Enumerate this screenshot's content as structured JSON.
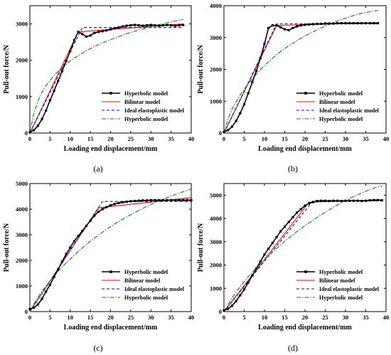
{
  "colors": {
    "measured": "#000000",
    "bilinear": "#ff0000",
    "ideal": "#0000ff",
    "hyperbolic_fit": "#008800"
  },
  "chart_data": [
    {
      "type": "line",
      "panel_label": "(a)",
      "xlabel": "Loading end displacement/mm",
      "ylabel": "Pull-out force/N",
      "xlim": [
        0,
        40
      ],
      "ylim": [
        0,
        3500
      ],
      "xticks": [
        "0",
        "5",
        "10",
        "15",
        "20",
        "25",
        "30",
        "35",
        "40"
      ],
      "yticks": [
        "0",
        "1000",
        "2000",
        "3000"
      ],
      "ytick_values": [
        0,
        1000,
        2000,
        3000
      ],
      "legend": [
        "Hyperbolic model",
        "Bilinear model",
        "Ideal elastoplastic model",
        "Hyperbolic model"
      ],
      "legend_position": "bottom-right",
      "series": [
        {
          "name": "Hyperbolic model",
          "style": "measured",
          "x": [
            0,
            1,
            2,
            3,
            4,
            5,
            6,
            7,
            8,
            9,
            10,
            11,
            12,
            13,
            14,
            15,
            16,
            17,
            18,
            19,
            20,
            21,
            22,
            23,
            24,
            25,
            26,
            27,
            28,
            29,
            30,
            31,
            32,
            33,
            34,
            35,
            36,
            37,
            38
          ],
          "y": [
            20,
            80,
            200,
            380,
            620,
            900,
            1160,
            1430,
            1700,
            1980,
            2250,
            2550,
            2780,
            2720,
            2650,
            2680,
            2750,
            2780,
            2800,
            2820,
            2850,
            2880,
            2900,
            2930,
            2950,
            2960,
            2970,
            2960,
            2950,
            2960,
            2970,
            2960,
            2950,
            2960,
            2970,
            2960,
            2950,
            2960,
            2970
          ]
        },
        {
          "name": "Bilinear model",
          "style": "bilinear",
          "x": [
            0,
            12,
            38
          ],
          "y": [
            0,
            2780,
            3000
          ]
        },
        {
          "name": "Ideal elastoplastic model",
          "style": "ideal",
          "x": [
            0,
            13,
            38
          ],
          "y": [
            0,
            2900,
            2900
          ]
        },
        {
          "name": "Hyperbolic model",
          "style": "hyperbolic_fit",
          "x": [
            0,
            1,
            2,
            3,
            4,
            6,
            8,
            10,
            12,
            14,
            16,
            18,
            20,
            22,
            24,
            26,
            28,
            30,
            32,
            34,
            36,
            38
          ],
          "y": [
            0,
            560,
            880,
            1120,
            1300,
            1580,
            1800,
            1980,
            2130,
            2260,
            2380,
            2480,
            2570,
            2650,
            2730,
            2800,
            2860,
            2920,
            2980,
            3030,
            3080,
            3120
          ]
        }
      ]
    },
    {
      "type": "line",
      "panel_label": "(b)",
      "xlabel": "Loading end displacement/mm",
      "ylabel": "Pull-out force/N",
      "xlim": [
        0,
        40
      ],
      "ylim": [
        0,
        4000
      ],
      "xticks": [
        "0",
        "5",
        "10",
        "15",
        "20",
        "25",
        "30",
        "35",
        "40"
      ],
      "yticks": [
        "0",
        "1000",
        "2000",
        "3000",
        "4000"
      ],
      "ytick_values": [
        0,
        1000,
        2000,
        3000,
        4000
      ],
      "legend": [
        "Hyperbolic model",
        "Bilinear model",
        "Ideal elastoplastic model",
        "Hyperbolic model"
      ],
      "legend_position": "bottom-right",
      "series": [
        {
          "name": "Hyperbolic model",
          "style": "measured",
          "x": [
            0,
            1,
            2,
            3,
            4,
            5,
            6,
            7,
            8,
            9,
            10,
            11,
            12,
            13,
            14,
            15,
            16,
            17,
            18,
            19,
            20,
            21,
            22,
            23,
            24,
            25,
            26,
            27,
            28,
            29,
            30,
            31,
            32,
            33,
            34,
            35,
            36,
            37,
            38
          ],
          "y": [
            30,
            90,
            200,
            380,
            620,
            900,
            1250,
            1600,
            1950,
            2350,
            2800,
            3300,
            3380,
            3380,
            3320,
            3260,
            3230,
            3300,
            3350,
            3380,
            3400,
            3410,
            3420,
            3430,
            3430,
            3440,
            3440,
            3440,
            3450,
            3450,
            3450,
            3450,
            3450,
            3450,
            3450,
            3450,
            3450,
            3450,
            3450
          ]
        },
        {
          "name": "Bilinear model",
          "style": "bilinear",
          "x": [
            0,
            13,
            38
          ],
          "y": [
            0,
            3380,
            3460
          ]
        },
        {
          "name": "Ideal elastoplastic model",
          "style": "ideal",
          "x": [
            0,
            13,
            38
          ],
          "y": [
            0,
            3430,
            3430
          ]
        },
        {
          "name": "Hyperbolic model",
          "style": "hyperbolic_fit",
          "x": [
            0,
            1,
            2,
            3,
            4,
            6,
            8,
            10,
            12,
            14,
            16,
            18,
            20,
            22,
            24,
            26,
            28,
            30,
            32,
            34,
            36,
            38
          ],
          "y": [
            0,
            450,
            750,
            980,
            1200,
            1550,
            1850,
            2120,
            2350,
            2560,
            2740,
            2900,
            3050,
            3180,
            3300,
            3420,
            3520,
            3610,
            3690,
            3760,
            3810,
            3850
          ]
        }
      ]
    },
    {
      "type": "line",
      "panel_label": "(c)",
      "xlabel": "Loading end displacement/mm",
      "ylabel": "Pull-out force/N",
      "xlim": [
        0,
        40
      ],
      "ylim": [
        0,
        5000
      ],
      "xticks": [
        "0",
        "5",
        "10",
        "15",
        "20",
        "25",
        "30",
        "35",
        "40"
      ],
      "yticks": [
        "0",
        "1000",
        "2000",
        "3000",
        "4000",
        "5000"
      ],
      "ytick_values": [
        0,
        1000,
        2000,
        3000,
        4000,
        5000
      ],
      "legend": [
        "Hyperbolic model",
        "Bilinear model",
        "Ideal elastoplastic model",
        "Hyperbolic model"
      ],
      "legend_position": "bottom-right",
      "series": [
        {
          "name": "Hyperbolic model",
          "style": "measured",
          "x": [
            0,
            1,
            2,
            3,
            4,
            5,
            6,
            7,
            8,
            9,
            10,
            11,
            12,
            13,
            14,
            15,
            16,
            17,
            18,
            19,
            20,
            21,
            22,
            23,
            24,
            25,
            26,
            27,
            28,
            29,
            30,
            31,
            32,
            33,
            34,
            35,
            36,
            37,
            38,
            39,
            40
          ],
          "y": [
            100,
            150,
            280,
            500,
            780,
            1050,
            1350,
            1650,
            1950,
            2250,
            2500,
            2750,
            2950,
            3150,
            3350,
            3550,
            3750,
            3900,
            4000,
            4080,
            4150,
            4200,
            4240,
            4270,
            4290,
            4310,
            4320,
            4330,
            4340,
            4340,
            4350,
            4350,
            4350,
            4350,
            4350,
            4350,
            4350,
            4350,
            4350,
            4350,
            4350
          ]
        },
        {
          "name": "Bilinear model",
          "style": "bilinear",
          "x": [
            0,
            17,
            40
          ],
          "y": [
            0,
            4050,
            4450
          ]
        },
        {
          "name": "Ideal elastoplastic model",
          "style": "ideal",
          "x": [
            0,
            18,
            40
          ],
          "y": [
            0,
            4300,
            4300
          ]
        },
        {
          "name": "Hyperbolic model",
          "style": "hyperbolic_fit",
          "x": [
            0,
            1,
            2,
            3,
            4,
            6,
            8,
            10,
            12,
            14,
            16,
            18,
            20,
            22,
            24,
            26,
            28,
            30,
            32,
            34,
            36,
            38,
            40
          ],
          "y": [
            0,
            300,
            560,
            800,
            1000,
            1400,
            1750,
            2050,
            2350,
            2620,
            2870,
            3100,
            3320,
            3520,
            3700,
            3870,
            4030,
            4180,
            4320,
            4450,
            4570,
            4680,
            4790
          ]
        }
      ]
    },
    {
      "type": "line",
      "panel_label": "(d)",
      "xlabel": "Loading end displacement/mm",
      "ylabel": "Pull-out force/N",
      "xlim": [
        0,
        40
      ],
      "ylim": [
        0,
        5500
      ],
      "xticks": [
        "0",
        "5",
        "10",
        "15",
        "20",
        "25",
        "30",
        "35",
        "40"
      ],
      "yticks": [
        "0",
        "1000",
        "2000",
        "3000",
        "4000",
        "5000"
      ],
      "ytick_values": [
        0,
        1000,
        2000,
        3000,
        4000,
        5000
      ],
      "legend": [
        "Hyperbolic model",
        "Bilinear model",
        "Ideal elastoplastic model",
        "Hyperbolic model"
      ],
      "legend_position": "bottom-right",
      "series": [
        {
          "name": "Hyperbolic model",
          "style": "measured",
          "x": [
            0,
            1,
            2,
            3,
            4,
            5,
            6,
            7,
            8,
            9,
            10,
            11,
            12,
            13,
            14,
            15,
            16,
            17,
            18,
            19,
            20,
            21,
            22,
            23,
            24,
            25,
            26,
            27,
            28,
            29,
            30,
            31,
            32,
            33,
            34,
            35,
            36,
            37,
            38,
            39
          ],
          "y": [
            50,
            120,
            250,
            450,
            700,
            950,
            1250,
            1550,
            1850,
            2150,
            2450,
            2700,
            2950,
            3200,
            3450,
            3650,
            3850,
            4050,
            4250,
            4400,
            4550,
            4650,
            4700,
            4750,
            4760,
            4760,
            4750,
            4760,
            4760,
            4750,
            4760,
            4760,
            4760,
            4760,
            4750,
            4760,
            4780,
            4790,
            4790,
            4780
          ]
        },
        {
          "name": "Bilinear model",
          "style": "bilinear",
          "x": [
            0,
            21,
            39
          ],
          "y": [
            0,
            4700,
            4800
          ]
        },
        {
          "name": "Ideal elastoplastic model",
          "style": "ideal",
          "x": [
            0,
            22,
            39
          ],
          "y": [
            0,
            4760,
            4760
          ]
        },
        {
          "name": "Hyperbolic model",
          "style": "hyperbolic_fit",
          "x": [
            0,
            1,
            2,
            3,
            4,
            6,
            8,
            10,
            12,
            14,
            16,
            18,
            20,
            22,
            24,
            26,
            28,
            30,
            32,
            34,
            36,
            38,
            39
          ],
          "y": [
            0,
            300,
            580,
            840,
            1080,
            1500,
            1880,
            2230,
            2560,
            2870,
            3160,
            3430,
            3690,
            3930,
            4160,
            4380,
            4580,
            4770,
            4940,
            5100,
            5240,
            5360,
            5400
          ]
        }
      ]
    }
  ]
}
